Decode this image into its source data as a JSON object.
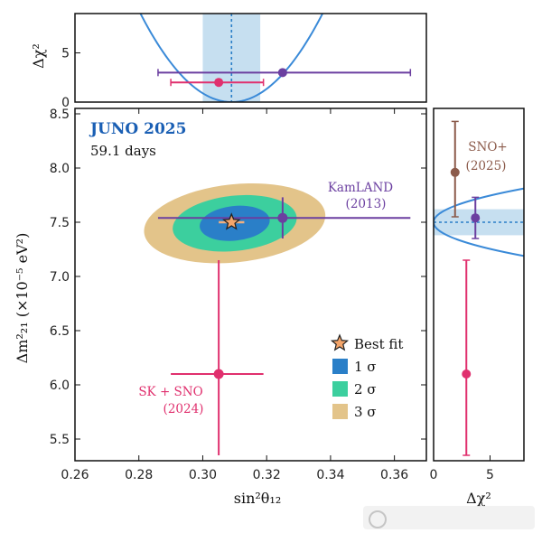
{
  "chart_data": {
    "type": "scatter",
    "title": "JUNO 2025",
    "subtitle": "59.1 days",
    "xlabel": "sin²θ₁₂",
    "ylabel": "Δm²₂₁ (×10⁻⁵ eV²)",
    "top_ylabel": "Δχ²",
    "right_xlabel": "Δχ²",
    "xlim": [
      0.26,
      0.37
    ],
    "ylim": [
      5.3,
      8.55
    ],
    "top_ylim": [
      0,
      9
    ],
    "right_xlim": [
      0,
      8
    ],
    "x_ticks": [
      "0.26",
      "0.28",
      "0.30",
      "0.32",
      "0.34",
      "0.36"
    ],
    "y_ticks": [
      "5.5",
      "6.0",
      "6.5",
      "7.0",
      "7.5",
      "8.0",
      "8.5"
    ],
    "top_y_ticks": [
      "0",
      "5"
    ],
    "right_x_ticks": [
      "0",
      "5"
    ],
    "best_fit": {
      "x": 0.309,
      "y": 7.5,
      "xerr": [
        0.305,
        0.313
      ]
    },
    "contours": [
      {
        "name": "3σ",
        "cx": 0.31,
        "cy": 7.49,
        "rx": 0.0285,
        "ry": 0.36,
        "color": "#e3c48a"
      },
      {
        "name": "2σ",
        "cx": 0.31,
        "cy": 7.49,
        "rx": 0.0195,
        "ry": 0.255,
        "color": "#3ccf9e"
      },
      {
        "name": "1σ",
        "cx": 0.31,
        "cy": 7.49,
        "rx": 0.011,
        "ry": 0.16,
        "color": "#2a7fc8"
      }
    ],
    "measurements": [
      {
        "name": "KamLAND",
        "year": "(2013)",
        "x": 0.325,
        "xerr": [
          0.286,
          0.365
        ],
        "y": 7.54,
        "yerr": [
          7.35,
          7.73
        ],
        "color": "#6b3fa0",
        "chi2": 3.0
      },
      {
        "name": "SK + SNO",
        "year": "(2024)",
        "x": 0.305,
        "xerr": [
          0.29,
          0.319
        ],
        "y": 6.1,
        "yerr": [
          5.35,
          7.15
        ],
        "color": "#e0306e",
        "chi2": 2.9
      },
      {
        "name": "SNO+",
        "year": "(2025)",
        "y": 7.96,
        "yerr": [
          7.55,
          8.43
        ],
        "color": "#8b5a4a",
        "chi2": 1.9
      }
    ],
    "top_panel": {
      "band": [
        0.3,
        0.318
      ],
      "center": 0.309,
      "points": [
        {
          "x": 0.305,
          "xerr": [
            0.29,
            0.319
          ],
          "chi2": 2.0,
          "color": "#e0306e"
        },
        {
          "x": 0.325,
          "xerr": [
            0.286,
            0.365
          ],
          "chi2": 3.0,
          "color": "#6b3fa0"
        }
      ]
    },
    "right_panel": {
      "band": [
        7.38,
        7.62
      ],
      "center": 7.5,
      "points": [
        {
          "y": 7.96,
          "yerr": [
            7.55,
            8.43
          ],
          "chi2": 1.9,
          "color": "#8b5a4a"
        },
        {
          "y": 7.54,
          "yerr": [
            7.35,
            7.73
          ],
          "chi2": 3.7,
          "color": "#6b3fa0"
        },
        {
          "y": 6.1,
          "yerr": [
            5.35,
            7.15
          ],
          "chi2": 2.9,
          "color": "#e0306e"
        }
      ]
    },
    "legend": {
      "position": "lower-right",
      "entries": [
        "Best fit",
        "1 σ",
        "2 σ",
        "3 σ"
      ]
    },
    "grid": false
  }
}
